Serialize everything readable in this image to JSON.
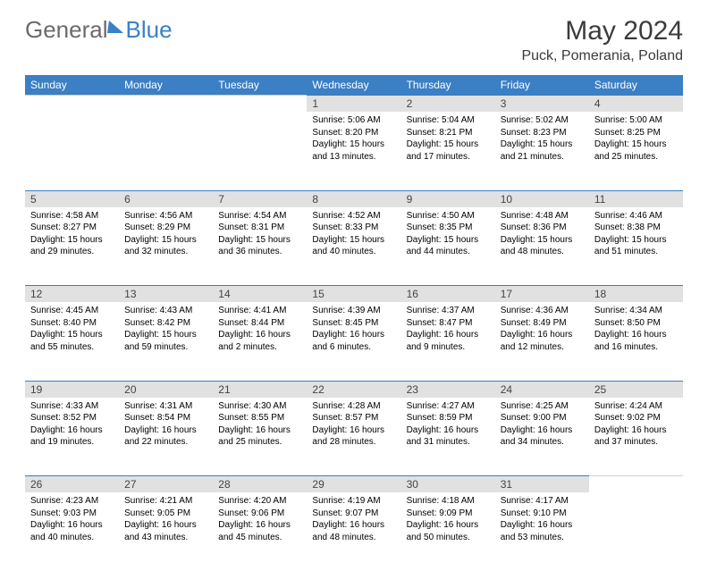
{
  "brand": {
    "part1": "General",
    "part2": "Blue"
  },
  "title": "May 2024",
  "location": "Puck, Pomerania, Poland",
  "colors": {
    "accent": "#3b7fc4",
    "header_text": "#ffffff",
    "daynum_bg": "#e1e1e1",
    "text": "#000000",
    "muted": "#6b6b6b"
  },
  "day_headers": [
    "Sunday",
    "Monday",
    "Tuesday",
    "Wednesday",
    "Thursday",
    "Friday",
    "Saturday"
  ],
  "weeks": [
    [
      null,
      null,
      null,
      {
        "n": "1",
        "sr": "Sunrise: 5:06 AM",
        "ss": "Sunset: 8:20 PM",
        "d1": "Daylight: 15 hours",
        "d2": "and 13 minutes."
      },
      {
        "n": "2",
        "sr": "Sunrise: 5:04 AM",
        "ss": "Sunset: 8:21 PM",
        "d1": "Daylight: 15 hours",
        "d2": "and 17 minutes."
      },
      {
        "n": "3",
        "sr": "Sunrise: 5:02 AM",
        "ss": "Sunset: 8:23 PM",
        "d1": "Daylight: 15 hours",
        "d2": "and 21 minutes."
      },
      {
        "n": "4",
        "sr": "Sunrise: 5:00 AM",
        "ss": "Sunset: 8:25 PM",
        "d1": "Daylight: 15 hours",
        "d2": "and 25 minutes."
      }
    ],
    [
      {
        "n": "5",
        "sr": "Sunrise: 4:58 AM",
        "ss": "Sunset: 8:27 PM",
        "d1": "Daylight: 15 hours",
        "d2": "and 29 minutes."
      },
      {
        "n": "6",
        "sr": "Sunrise: 4:56 AM",
        "ss": "Sunset: 8:29 PM",
        "d1": "Daylight: 15 hours",
        "d2": "and 32 minutes."
      },
      {
        "n": "7",
        "sr": "Sunrise: 4:54 AM",
        "ss": "Sunset: 8:31 PM",
        "d1": "Daylight: 15 hours",
        "d2": "and 36 minutes."
      },
      {
        "n": "8",
        "sr": "Sunrise: 4:52 AM",
        "ss": "Sunset: 8:33 PM",
        "d1": "Daylight: 15 hours",
        "d2": "and 40 minutes."
      },
      {
        "n": "9",
        "sr": "Sunrise: 4:50 AM",
        "ss": "Sunset: 8:35 PM",
        "d1": "Daylight: 15 hours",
        "d2": "and 44 minutes."
      },
      {
        "n": "10",
        "sr": "Sunrise: 4:48 AM",
        "ss": "Sunset: 8:36 PM",
        "d1": "Daylight: 15 hours",
        "d2": "and 48 minutes."
      },
      {
        "n": "11",
        "sr": "Sunrise: 4:46 AM",
        "ss": "Sunset: 8:38 PM",
        "d1": "Daylight: 15 hours",
        "d2": "and 51 minutes."
      }
    ],
    [
      {
        "n": "12",
        "sr": "Sunrise: 4:45 AM",
        "ss": "Sunset: 8:40 PM",
        "d1": "Daylight: 15 hours",
        "d2": "and 55 minutes."
      },
      {
        "n": "13",
        "sr": "Sunrise: 4:43 AM",
        "ss": "Sunset: 8:42 PM",
        "d1": "Daylight: 15 hours",
        "d2": "and 59 minutes."
      },
      {
        "n": "14",
        "sr": "Sunrise: 4:41 AM",
        "ss": "Sunset: 8:44 PM",
        "d1": "Daylight: 16 hours",
        "d2": "and 2 minutes."
      },
      {
        "n": "15",
        "sr": "Sunrise: 4:39 AM",
        "ss": "Sunset: 8:45 PM",
        "d1": "Daylight: 16 hours",
        "d2": "and 6 minutes."
      },
      {
        "n": "16",
        "sr": "Sunrise: 4:37 AM",
        "ss": "Sunset: 8:47 PM",
        "d1": "Daylight: 16 hours",
        "d2": "and 9 minutes."
      },
      {
        "n": "17",
        "sr": "Sunrise: 4:36 AM",
        "ss": "Sunset: 8:49 PM",
        "d1": "Daylight: 16 hours",
        "d2": "and 12 minutes."
      },
      {
        "n": "18",
        "sr": "Sunrise: 4:34 AM",
        "ss": "Sunset: 8:50 PM",
        "d1": "Daylight: 16 hours",
        "d2": "and 16 minutes."
      }
    ],
    [
      {
        "n": "19",
        "sr": "Sunrise: 4:33 AM",
        "ss": "Sunset: 8:52 PM",
        "d1": "Daylight: 16 hours",
        "d2": "and 19 minutes."
      },
      {
        "n": "20",
        "sr": "Sunrise: 4:31 AM",
        "ss": "Sunset: 8:54 PM",
        "d1": "Daylight: 16 hours",
        "d2": "and 22 minutes."
      },
      {
        "n": "21",
        "sr": "Sunrise: 4:30 AM",
        "ss": "Sunset: 8:55 PM",
        "d1": "Daylight: 16 hours",
        "d2": "and 25 minutes."
      },
      {
        "n": "22",
        "sr": "Sunrise: 4:28 AM",
        "ss": "Sunset: 8:57 PM",
        "d1": "Daylight: 16 hours",
        "d2": "and 28 minutes."
      },
      {
        "n": "23",
        "sr": "Sunrise: 4:27 AM",
        "ss": "Sunset: 8:59 PM",
        "d1": "Daylight: 16 hours",
        "d2": "and 31 minutes."
      },
      {
        "n": "24",
        "sr": "Sunrise: 4:25 AM",
        "ss": "Sunset: 9:00 PM",
        "d1": "Daylight: 16 hours",
        "d2": "and 34 minutes."
      },
      {
        "n": "25",
        "sr": "Sunrise: 4:24 AM",
        "ss": "Sunset: 9:02 PM",
        "d1": "Daylight: 16 hours",
        "d2": "and 37 minutes."
      }
    ],
    [
      {
        "n": "26",
        "sr": "Sunrise: 4:23 AM",
        "ss": "Sunset: 9:03 PM",
        "d1": "Daylight: 16 hours",
        "d2": "and 40 minutes."
      },
      {
        "n": "27",
        "sr": "Sunrise: 4:21 AM",
        "ss": "Sunset: 9:05 PM",
        "d1": "Daylight: 16 hours",
        "d2": "and 43 minutes."
      },
      {
        "n": "28",
        "sr": "Sunrise: 4:20 AM",
        "ss": "Sunset: 9:06 PM",
        "d1": "Daylight: 16 hours",
        "d2": "and 45 minutes."
      },
      {
        "n": "29",
        "sr": "Sunrise: 4:19 AM",
        "ss": "Sunset: 9:07 PM",
        "d1": "Daylight: 16 hours",
        "d2": "and 48 minutes."
      },
      {
        "n": "30",
        "sr": "Sunrise: 4:18 AM",
        "ss": "Sunset: 9:09 PM",
        "d1": "Daylight: 16 hours",
        "d2": "and 50 minutes."
      },
      {
        "n": "31",
        "sr": "Sunrise: 4:17 AM",
        "ss": "Sunset: 9:10 PM",
        "d1": "Daylight: 16 hours",
        "d2": "and 53 minutes."
      },
      null
    ]
  ]
}
